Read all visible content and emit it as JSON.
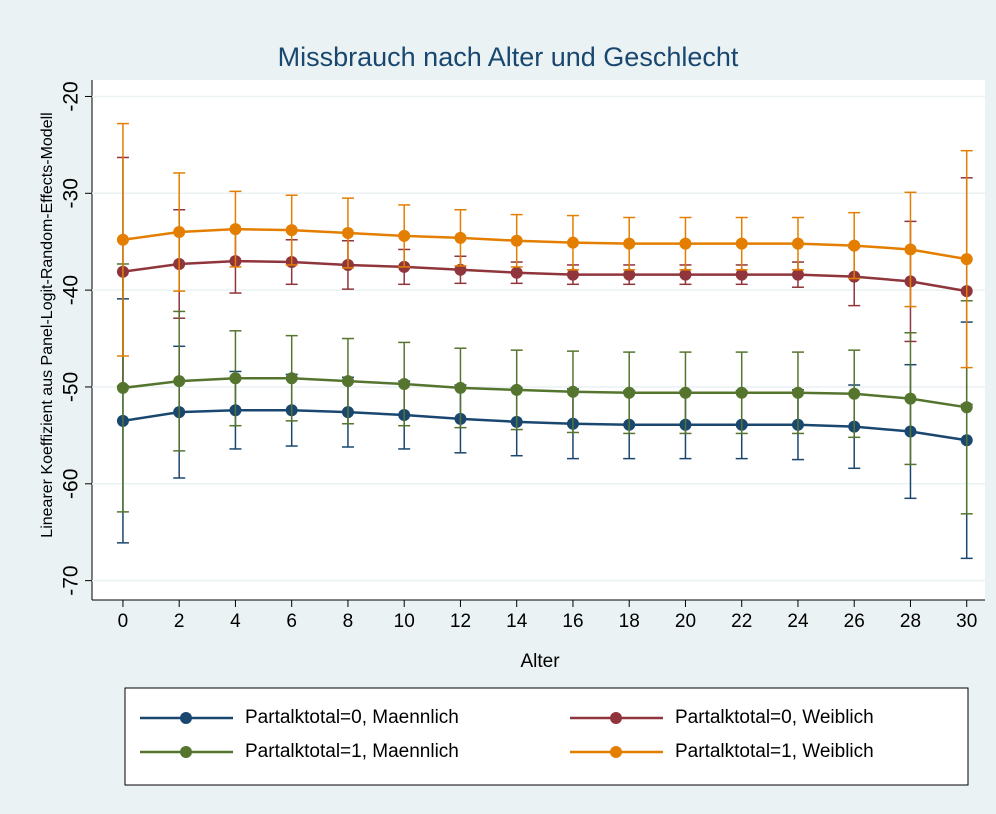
{
  "chart_data": {
    "type": "line",
    "title": "Missbrauch nach Alter und Geschlecht",
    "x_label": "Alter",
    "y_label": "Linearer Koeffizient aus Panel-Logit-Random-Effects-Modell",
    "x": [
      0,
      2,
      4,
      6,
      8,
      10,
      12,
      14,
      16,
      18,
      20,
      22,
      24,
      26,
      28,
      30
    ],
    "xlim": [
      -1.1,
      30.65
    ],
    "xticks": [
      0,
      2,
      4,
      6,
      8,
      10,
      12,
      14,
      16,
      18,
      20,
      22,
      24,
      26,
      28,
      30
    ],
    "ylim": [
      -72,
      -18.3
    ],
    "yticks": [
      -70,
      -60,
      -50,
      -40,
      -30,
      -20
    ],
    "grid": true,
    "series": [
      {
        "name": "Partalktotal=0, Maennlich",
        "color": "#1a476f",
        "values": [
          -53.5,
          -52.6,
          -52.4,
          -52.4,
          -52.6,
          -52.9,
          -53.3,
          -53.6,
          -53.8,
          -53.9,
          -53.9,
          -53.9,
          -53.9,
          -54.1,
          -54.6,
          -55.5
        ],
        "errors": [
          12.6,
          6.8,
          4.0,
          3.7,
          3.6,
          3.5,
          3.5,
          3.5,
          3.6,
          3.5,
          3.5,
          3.5,
          3.6,
          4.3,
          6.9,
          12.2
        ]
      },
      {
        "name": "Partalktotal=0, Weiblich",
        "color": "#90353b",
        "values": [
          -38.1,
          -37.3,
          -37.0,
          -37.1,
          -37.4,
          -37.6,
          -37.9,
          -38.2,
          -38.4,
          -38.4,
          -38.4,
          -38.4,
          -38.4,
          -38.6,
          -39.1,
          -40.1
        ],
        "errors": [
          11.8,
          5.6,
          3.3,
          2.3,
          2.5,
          1.8,
          1.4,
          1.1,
          1.0,
          1.0,
          1.0,
          1.0,
          1.3,
          3.0,
          6.2,
          11.7
        ]
      },
      {
        "name": "Partalktotal=1, Maennlich",
        "color": "#55752f",
        "values": [
          -50.1,
          -49.4,
          -49.1,
          -49.1,
          -49.4,
          -49.7,
          -50.1,
          -50.3,
          -50.5,
          -50.6,
          -50.6,
          -50.6,
          -50.6,
          -50.7,
          -51.2,
          -52.1
        ],
        "errors": [
          12.8,
          7.2,
          4.9,
          4.4,
          4.4,
          4.3,
          4.1,
          4.1,
          4.2,
          4.2,
          4.2,
          4.2,
          4.2,
          4.5,
          6.8,
          11.0
        ]
      },
      {
        "name": "Partalktotal=1, Weiblich",
        "color": "#e37e00",
        "values": [
          -34.8,
          -34.0,
          -33.7,
          -33.8,
          -34.1,
          -34.4,
          -34.6,
          -34.9,
          -35.1,
          -35.2,
          -35.2,
          -35.2,
          -35.2,
          -35.4,
          -35.8,
          -36.8
        ],
        "errors": [
          12.0,
          6.1,
          3.9,
          3.6,
          3.6,
          3.2,
          2.9,
          2.7,
          2.8,
          2.7,
          2.7,
          2.7,
          2.7,
          3.4,
          5.9,
          11.2
        ]
      }
    ]
  }
}
